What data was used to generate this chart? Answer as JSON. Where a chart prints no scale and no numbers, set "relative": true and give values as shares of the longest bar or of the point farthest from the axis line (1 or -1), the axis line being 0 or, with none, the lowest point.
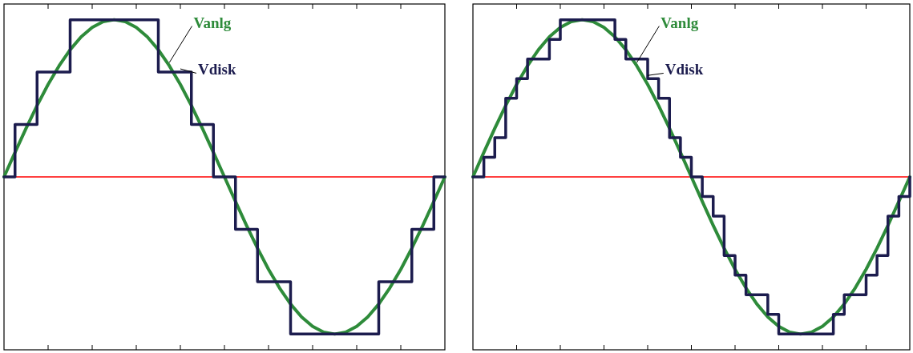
{
  "chart_data": [
    {
      "type": "line",
      "relative": true,
      "categories": [
        null,
        null,
        null,
        null,
        null,
        null,
        null,
        null,
        null,
        null,
        null,
        null,
        null,
        null,
        null,
        null,
        null,
        null,
        null,
        null,
        null,
        null,
        null,
        null,
        null,
        null,
        null,
        null,
        null,
        null,
        null,
        null,
        null,
        null,
        null,
        null,
        null,
        null,
        null,
        null,
        null
      ],
      "grid": false,
      "series": [
        {
          "name": "Vanlg",
          "color": "#2e8b3a",
          "values": [
            0,
            0.156,
            0.309,
            0.454,
            0.588,
            0.707,
            0.809,
            0.891,
            0.951,
            0.988,
            1,
            0.988,
            0.951,
            0.891,
            0.809,
            0.707,
            0.588,
            0.454,
            0.309,
            0.156,
            0,
            -0.156,
            -0.309,
            -0.454,
            -0.588,
            -0.707,
            -0.809,
            -0.891,
            -0.951,
            -0.988,
            -1,
            -0.988,
            -0.951,
            -0.891,
            -0.809,
            -0.707,
            -0.588,
            -0.454,
            -0.309,
            -0.156,
            0
          ]
        },
        {
          "name": "Vdisk",
          "type": "step",
          "color": "#1c1c4e",
          "values": [
            0,
            0.333,
            0.333,
            0.667,
            0.667,
            0.667,
            1,
            1,
            1,
            1,
            1,
            1,
            1,
            1,
            0.667,
            0.667,
            0.667,
            0.333,
            0.333,
            0,
            0,
            -0.333,
            -0.333,
            -0.667,
            -0.667,
            -0.667,
            -1,
            -1,
            -1,
            -1,
            -1,
            -1,
            -1,
            -1,
            -0.667,
            -0.667,
            -0.667,
            -0.333,
            -0.333,
            0,
            0
          ]
        }
      ],
      "ref_lines": [
        {
          "axis": "y",
          "value": 0,
          "color": "#ff0000"
        }
      ]
    },
    {
      "type": "line",
      "relative": true,
      "categories": [
        null,
        null,
        null,
        null,
        null,
        null,
        null,
        null,
        null,
        null,
        null,
        null,
        null,
        null,
        null,
        null,
        null,
        null,
        null,
        null,
        null,
        null,
        null,
        null,
        null,
        null,
        null,
        null,
        null,
        null,
        null,
        null,
        null,
        null,
        null,
        null,
        null,
        null,
        null,
        null,
        null
      ],
      "grid": false,
      "series": [
        {
          "name": "Vanlg",
          "color": "#2e8b3a",
          "values": [
            0,
            0.156,
            0.309,
            0.454,
            0.588,
            0.707,
            0.809,
            0.891,
            0.951,
            0.988,
            1,
            0.988,
            0.951,
            0.891,
            0.809,
            0.707,
            0.588,
            0.454,
            0.309,
            0.156,
            0,
            -0.156,
            -0.309,
            -0.454,
            -0.588,
            -0.707,
            -0.809,
            -0.891,
            -0.951,
            -0.988,
            -1,
            -0.988,
            -0.951,
            -0.891,
            -0.809,
            -0.707,
            -0.588,
            -0.454,
            -0.309,
            -0.156,
            0
          ]
        },
        {
          "name": "Vdisk",
          "type": "step",
          "color": "#1c1c4e",
          "values": [
            0,
            0.125,
            0.25,
            0.5,
            0.625,
            0.75,
            0.75,
            0.875,
            1,
            1,
            1,
            1,
            1,
            0.875,
            0.75,
            0.75,
            0.625,
            0.5,
            0.25,
            0.125,
            0,
            -0.125,
            -0.25,
            -0.5,
            -0.625,
            -0.75,
            -0.75,
            -0.875,
            -1,
            -1,
            -1,
            -1,
            -1,
            -0.875,
            -0.75,
            -0.75,
            -0.625,
            -0.5,
            -0.25,
            -0.125,
            0
          ]
        }
      ],
      "ref_lines": [
        {
          "axis": "y",
          "value": 0,
          "color": "#ff0000"
        }
      ]
    }
  ]
}
